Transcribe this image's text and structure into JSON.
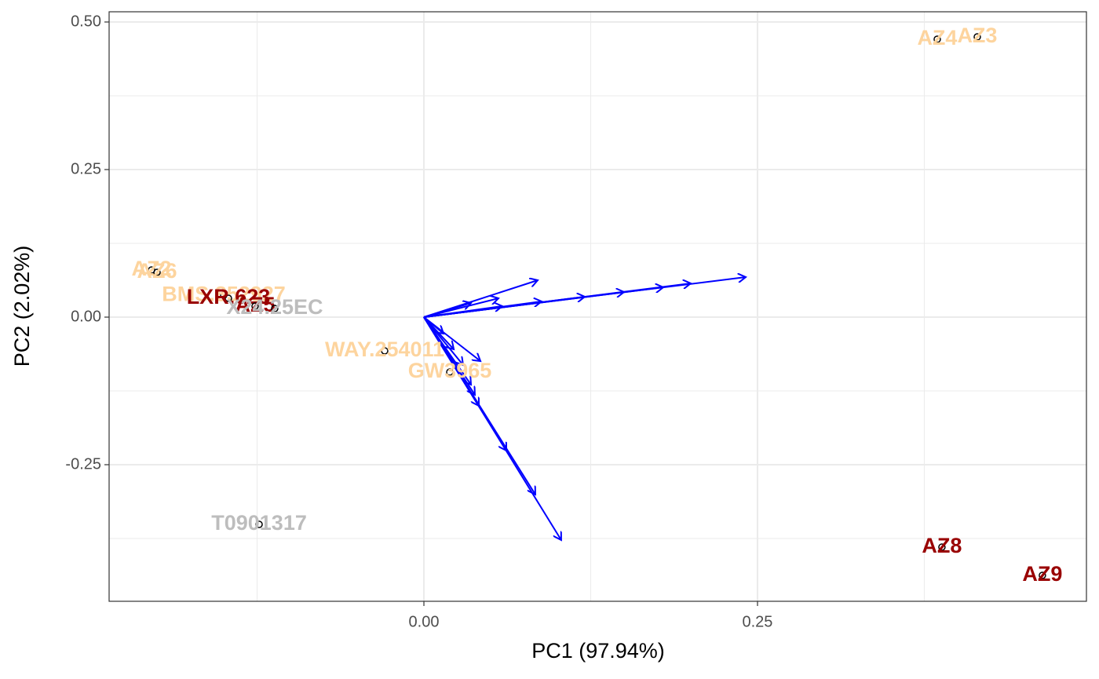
{
  "chart_data": {
    "type": "biplot",
    "x_label": "PC1 (97.94%)",
    "y_label": "PC2 (2.02%)",
    "xlim": [
      -0.2359,
      0.4965
    ],
    "ylim": [
      -0.4814,
      0.5173
    ],
    "xticks": [
      {
        "value": 0,
        "label": "0.00"
      },
      {
        "value": 0.25,
        "label": "0.25"
      }
    ],
    "yticks": [
      {
        "value": -0.25,
        "label": "-0.25"
      },
      {
        "value": 0,
        "label": "0.00"
      },
      {
        "value": 0.25,
        "label": "0.25"
      },
      {
        "value": 0.5,
        "label": "0.50"
      }
    ],
    "grid": true,
    "minor_grid": true,
    "labels": [
      "AZ4",
      "AZ3",
      "AZ2",
      "AZ6",
      "BMS.852927",
      "LXR.623",
      "AZ5",
      "X24.25EC",
      "WAY.254011",
      "GW3965",
      "T0901317",
      "AZ8",
      "AZ9"
    ],
    "x": [
      0.3847,
      0.4147,
      -0.2041,
      -0.2,
      -0.15,
      -0.1465,
      -0.1265,
      -0.1118,
      -0.0294,
      0.0194,
      -0.1235,
      0.3882,
      0.4635
    ],
    "y": [
      0.4707,
      0.4747,
      0.0798,
      0.0758,
      0.037,
      0.0319,
      0.0186,
      0.0146,
      -0.0572,
      -0.0931,
      -0.3511,
      -0.3896,
      -0.4375
    ],
    "colors": [
      "#fdd49e",
      "#fdd49e",
      "#fdd49e",
      "#fdd49e",
      "#fdd49e",
      "#990000",
      "#990000",
      "#bdbdbd",
      "#fdd49e",
      "#fdd49e",
      "#bdbdbd",
      "#990000",
      "#990000"
    ],
    "arrow_color": "#0000ff",
    "loadings": {
      "x": [
        0.2412,
        0.2,
        0.1794,
        0.15,
        0.1206,
        0.0882,
        0.0588,
        0.0853,
        0.0559,
        0.0353,
        0.1029,
        0.0835,
        0.0618,
        0.0412,
        0.0382,
        0.0353,
        0.0424,
        0.0294,
        0.0224,
        0.0147
      ],
      "y": [
        0.0678,
        0.0572,
        0.0505,
        0.0426,
        0.0346,
        0.0266,
        0.0186,
        0.0625,
        0.0319,
        0.0239,
        -0.3777,
        -0.3005,
        -0.2261,
        -0.1503,
        -0.1316,
        -0.1144,
        -0.0745,
        -0.0811,
        -0.0545,
        -0.0279
      ]
    }
  }
}
